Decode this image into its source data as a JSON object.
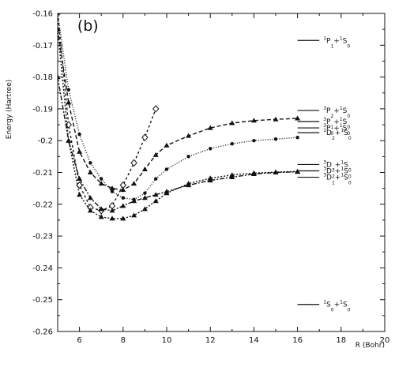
{
  "chart_data": {
    "type": "line",
    "panel_label": "(b)",
    "xlabel": "R (Bohr)",
    "ylabel": "Energy (Hartree)",
    "xlim": [
      5,
      20
    ],
    "ylim": [
      -0.26,
      -0.16
    ],
    "x_ticks": [
      6,
      8,
      10,
      12,
      14,
      16,
      18,
      20
    ],
    "x_tick_labels": [
      "6",
      "8",
      "10",
      "12",
      "14",
      "16",
      "18",
      "20"
    ],
    "y_ticks": [
      -0.26,
      -0.25,
      -0.24,
      -0.23,
      -0.22,
      -0.21,
      -0.2,
      -0.19,
      -0.18,
      -0.17,
      -0.16
    ],
    "y_tick_labels": [
      "-0.26",
      "-0.25",
      "-0.24",
      "-0.23",
      "-0.22",
      "-0.21",
      "-0.2",
      "-0.19",
      "-0.18",
      "-0.17",
      "-0.16"
    ],
    "grid": false,
    "series": [
      {
        "marker": "diamond",
        "dash": "3,3",
        "x": [
          5.0,
          5.5,
          6.0,
          6.5,
          7.0,
          7.5,
          8.0,
          8.5,
          9.0,
          9.5
        ],
        "y": [
          -0.16,
          -0.195,
          -0.214,
          -0.221,
          -0.222,
          -0.2205,
          -0.214,
          -0.207,
          -0.199,
          -0.19
        ]
      },
      {
        "marker": "triangle",
        "dash": "5,3",
        "x": [
          5.0,
          5.5,
          6.0,
          6.5,
          7.0,
          7.5,
          8.0,
          8.5,
          9.0,
          9.5,
          10.0,
          11.0,
          12.0,
          13.0,
          14.0,
          15.0,
          16.0
        ],
        "y": [
          -0.165,
          -0.188,
          -0.2035,
          -0.21,
          -0.2135,
          -0.215,
          -0.2155,
          -0.2135,
          -0.209,
          -0.2045,
          -0.2015,
          -0.1985,
          -0.196,
          -0.1945,
          -0.1937,
          -0.1933,
          -0.193
        ]
      },
      {
        "marker": "dot",
        "dash": "1,2",
        "x": [
          5.0,
          5.5,
          6.0,
          6.5,
          7.0,
          7.5,
          8.0,
          8.5,
          9.0,
          9.5,
          10.0,
          11.0,
          12.0,
          13.0,
          14.0,
          15.0,
          16.0
        ],
        "y": [
          -0.16,
          -0.184,
          -0.198,
          -0.207,
          -0.212,
          -0.216,
          -0.218,
          -0.2185,
          -0.2165,
          -0.212,
          -0.209,
          -0.205,
          -0.2025,
          -0.201,
          -0.2,
          -0.1995,
          -0.199
        ]
      },
      {
        "marker": "triangle",
        "dash": "6,2,2,2",
        "x": [
          5.0,
          5.5,
          6.0,
          6.5,
          7.0,
          7.5,
          8.0,
          8.5,
          9.0,
          9.5,
          10.0,
          11.0,
          12.0,
          13.0,
          14.0,
          15.0,
          16.0
        ],
        "y": [
          -0.18,
          -0.2,
          -0.212,
          -0.218,
          -0.2215,
          -0.222,
          -0.2205,
          -0.219,
          -0.218,
          -0.217,
          -0.216,
          -0.214,
          -0.2125,
          -0.2115,
          -0.2105,
          -0.21,
          -0.2098
        ]
      },
      {
        "marker": "triangle",
        "dash": "2,2",
        "x": [
          5.0,
          5.5,
          6.0,
          6.5,
          7.0,
          7.5,
          8.0,
          8.5,
          9.0,
          9.5,
          10.0,
          11.0,
          12.0,
          13.0,
          14.0,
          15.0,
          16.0
        ],
        "y": [
          -0.165,
          -0.2,
          -0.217,
          -0.222,
          -0.224,
          -0.2245,
          -0.2245,
          -0.2235,
          -0.2215,
          -0.219,
          -0.2165,
          -0.2135,
          -0.2118,
          -0.2108,
          -0.2102,
          -0.2099,
          -0.2097
        ]
      }
    ],
    "asymptotes": [
      {
        "level": -0.1685,
        "label": [
          {
            "t": "1",
            "s": "sup"
          },
          {
            "t": "P"
          },
          {
            "t": "1",
            "s": "sub"
          },
          {
            "t": "+"
          },
          {
            "t": "1",
            "s": "sup"
          },
          {
            "t": "S"
          },
          {
            "t": "0",
            "s": "sub"
          }
        ]
      },
      {
        "level": -0.1905,
        "label": [
          {
            "t": "3",
            "s": "sup"
          },
          {
            "t": "P"
          },
          {
            "t": "2",
            "s": "sub"
          },
          {
            "t": "+"
          },
          {
            "t": "1",
            "s": "sup"
          },
          {
            "t": "S"
          },
          {
            "t": "0",
            "s": "sub"
          }
        ]
      },
      {
        "level": -0.194,
        "label": [
          {
            "t": "3",
            "s": "sup"
          },
          {
            "t": "P"
          },
          {
            "t": "1",
            "s": "sub"
          },
          {
            "t": "+"
          },
          {
            "t": "1",
            "s": "sup"
          },
          {
            "t": "S"
          },
          {
            "t": "0",
            "s": "sub"
          }
        ]
      },
      {
        "level": -0.196,
        "label": [
          {
            "t": "3",
            "s": "sup"
          },
          {
            "t": "P"
          },
          {
            "t": "0",
            "s": "sub"
          },
          {
            "t": "+"
          },
          {
            "t": "1",
            "s": "sup"
          },
          {
            "t": "S"
          },
          {
            "t": "0",
            "s": "sub"
          }
        ]
      },
      {
        "level": -0.1975,
        "label": [
          {
            "t": "1",
            "s": "sup"
          },
          {
            "t": "D"
          },
          {
            "t": "2",
            "s": "sub"
          },
          {
            "t": "+"
          },
          {
            "t": "1",
            "s": "sup"
          },
          {
            "t": "S"
          },
          {
            "t": "0",
            "s": "sub"
          }
        ]
      },
      {
        "level": -0.2075,
        "label": [
          {
            "t": "3",
            "s": "sup"
          },
          {
            "t": "D"
          },
          {
            "t": "3",
            "s": "sub"
          },
          {
            "t": "+"
          },
          {
            "t": "1",
            "s": "sup"
          },
          {
            "t": "S"
          },
          {
            "t": "0",
            "s": "sub"
          }
        ]
      },
      {
        "level": -0.2095,
        "label": [
          {
            "t": "3",
            "s": "sup"
          },
          {
            "t": "D"
          },
          {
            "t": "2",
            "s": "sub"
          },
          {
            "t": "+"
          },
          {
            "t": "1",
            "s": "sup"
          },
          {
            "t": "S"
          },
          {
            "t": "0",
            "s": "sub"
          }
        ]
      },
      {
        "level": -0.2115,
        "label": [
          {
            "t": "3",
            "s": "sup"
          },
          {
            "t": "D"
          },
          {
            "t": "1",
            "s": "sub"
          },
          {
            "t": "+"
          },
          {
            "t": "1",
            "s": "sup"
          },
          {
            "t": "S"
          },
          {
            "t": "0",
            "s": "sub"
          }
        ]
      },
      {
        "level": -0.2515,
        "label": [
          {
            "t": "1",
            "s": "sup"
          },
          {
            "t": "S"
          },
          {
            "t": "0",
            "s": "sub"
          },
          {
            "t": "+"
          },
          {
            "t": "1",
            "s": "sup"
          },
          {
            "t": "S"
          },
          {
            "t": "0",
            "s": "sub"
          }
        ]
      }
    ],
    "asymptote_x_range": [
      16,
      17
    ]
  }
}
